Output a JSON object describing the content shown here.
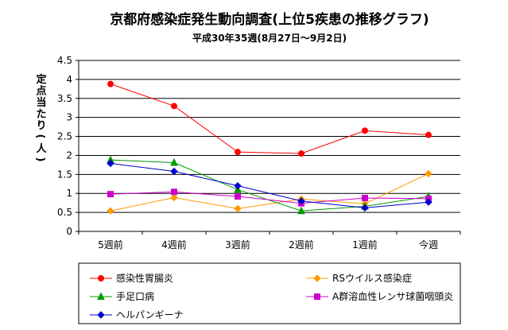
{
  "chart_data": {
    "type": "line",
    "title": "京都府感染症発生動向調査(上位5疾患の推移グラフ)",
    "subtitle": "平成30年35週(8月27日～9月2日)",
    "xlabel": "",
    "ylabel": "定点当たり(人)",
    "categories": [
      "5週前",
      "4週前",
      "3週前",
      "2週前",
      "1週前",
      "今週"
    ],
    "ylim": [
      0,
      4.5
    ],
    "yticks": [
      "0",
      "0.5",
      "1",
      "1.5",
      "2",
      "2.5",
      "3",
      "3.5",
      "4",
      "4.5"
    ],
    "grid": "horizontal",
    "legend_position": "bottom",
    "series": [
      {
        "name": "感染性胃腸炎",
        "values": [
          3.88,
          3.3,
          2.09,
          2.05,
          2.65,
          2.54
        ],
        "color": "#ff0000",
        "marker": "circle"
      },
      {
        "name": "RSウイルス感染症",
        "values": [
          0.54,
          0.89,
          0.6,
          0.85,
          0.73,
          1.52
        ],
        "color": "#ff9900",
        "marker": "diamond"
      },
      {
        "name": "手足口病",
        "values": [
          1.88,
          1.81,
          1.1,
          0.54,
          0.66,
          0.92
        ],
        "color": "#009900",
        "marker": "triangle"
      },
      {
        "name": "A群溶血性レンサ球菌咽頭炎",
        "values": [
          0.98,
          1.04,
          0.92,
          0.74,
          0.88,
          0.86
        ],
        "color": "#cc00cc",
        "marker": "square"
      },
      {
        "name": "ヘルパンギーナ",
        "values": [
          1.79,
          1.58,
          1.2,
          0.8,
          0.62,
          0.77
        ],
        "color": "#0000cc",
        "marker": "diamond"
      }
    ]
  }
}
